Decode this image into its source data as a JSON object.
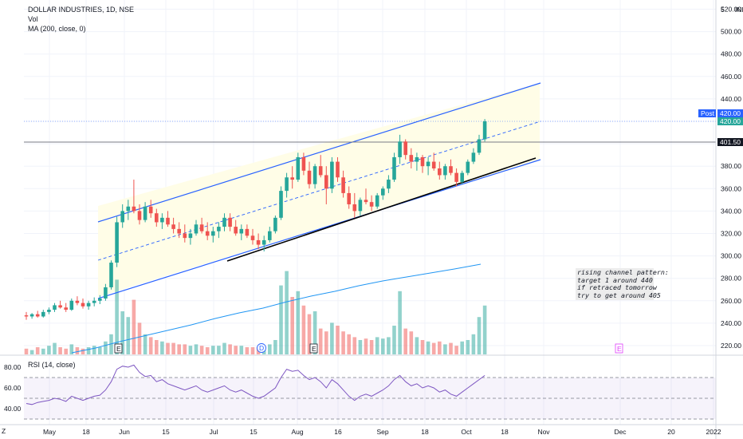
{
  "legend": {
    "title": "DOLLAR INDUSTRIES, 1D, NSE",
    "vol": "Vol",
    "ma": "MA (200, close, 0)",
    "currency": "INR"
  },
  "rsi_label": "RSI (14, close)",
  "note": "rising channel pattern:\ntarget 1 around 440\nif retraced tomorrow\ntry to get around 405",
  "price_labels": {
    "post_tag": "Post",
    "post_price": "420.00",
    "last_price": "420.00",
    "level": "401.50"
  },
  "event_markers": [
    "E",
    "D",
    "E",
    "E"
  ],
  "corner_label": "Z",
  "colors": {
    "up": "#26a69a",
    "down": "#ef5350",
    "channel": "#2962ff",
    "fill": "#fffde7",
    "ma": "#2196f3",
    "rsi": "#7e57c2",
    "level": "#787b86"
  },
  "chart_data": {
    "type": "candlestick",
    "price_axis": {
      "ticks": [
        220,
        240,
        260,
        280,
        300,
        320,
        340,
        360,
        380,
        400,
        420,
        440,
        460,
        480,
        500,
        520
      ],
      "top_label": "5"
    },
    "time_axis": {
      "ticks": [
        "May",
        "18",
        "Jun",
        "15",
        "Jul",
        "15",
        "Aug",
        "16",
        "Sep",
        "18",
        "Oct",
        "18",
        "Nov",
        "Dec",
        "20",
        "2022"
      ]
    },
    "rsi_axis": {
      "ticks": [
        80.0,
        60.0,
        40.0
      ],
      "bands": [
        70,
        50,
        30
      ]
    },
    "ohlc": [
      [
        247,
        250,
        243,
        246
      ],
      [
        246,
        249,
        244,
        248
      ],
      [
        248,
        251,
        245,
        246
      ],
      [
        246,
        252,
        245,
        250
      ],
      [
        250,
        254,
        248,
        252
      ],
      [
        252,
        258,
        250,
        256
      ],
      [
        256,
        260,
        253,
        254
      ],
      [
        254,
        258,
        250,
        252
      ],
      [
        252,
        262,
        251,
        260
      ],
      [
        260,
        264,
        256,
        258
      ],
      [
        258,
        262,
        253,
        255
      ],
      [
        255,
        260,
        252,
        258
      ],
      [
        258,
        263,
        255,
        260
      ],
      [
        260,
        265,
        257,
        262
      ],
      [
        262,
        275,
        260,
        272
      ],
      [
        272,
        296,
        270,
        294
      ],
      [
        294,
        335,
        290,
        330
      ],
      [
        330,
        346,
        325,
        340
      ],
      [
        340,
        350,
        332,
        344
      ],
      [
        344,
        368,
        338,
        340
      ],
      [
        340,
        346,
        328,
        332
      ],
      [
        332,
        348,
        330,
        344
      ],
      [
        344,
        350,
        334,
        338
      ],
      [
        338,
        342,
        326,
        330
      ],
      [
        330,
        338,
        324,
        334
      ],
      [
        334,
        340,
        326,
        328
      ],
      [
        328,
        334,
        320,
        324
      ],
      [
        324,
        330,
        316,
        320
      ],
      [
        320,
        328,
        312,
        316
      ],
      [
        316,
        324,
        310,
        320
      ],
      [
        320,
        332,
        318,
        328
      ],
      [
        328,
        334,
        320,
        322
      ],
      [
        322,
        330,
        314,
        318
      ],
      [
        318,
        326,
        312,
        322
      ],
      [
        322,
        330,
        316,
        326
      ],
      [
        326,
        338,
        322,
        334
      ],
      [
        334,
        338,
        322,
        326
      ],
      [
        326,
        332,
        318,
        320
      ],
      [
        320,
        328,
        314,
        324
      ],
      [
        324,
        328,
        316,
        318
      ],
      [
        318,
        324,
        310,
        314
      ],
      [
        314,
        320,
        306,
        310
      ],
      [
        310,
        318,
        304,
        314
      ],
      [
        314,
        326,
        312,
        322
      ],
      [
        322,
        336,
        320,
        334
      ],
      [
        334,
        362,
        332,
        358
      ],
      [
        358,
        374,
        352,
        370
      ],
      [
        370,
        380,
        360,
        368
      ],
      [
        368,
        392,
        366,
        388
      ],
      [
        388,
        392,
        372,
        376
      ],
      [
        376,
        384,
        360,
        364
      ],
      [
        364,
        382,
        360,
        380
      ],
      [
        380,
        390,
        370,
        372
      ],
      [
        372,
        380,
        346,
        360
      ],
      [
        360,
        388,
        356,
        384
      ],
      [
        384,
        388,
        366,
        370
      ],
      [
        370,
        376,
        352,
        356
      ],
      [
        356,
        362,
        342,
        346
      ],
      [
        346,
        356,
        334,
        340
      ],
      [
        340,
        352,
        336,
        350
      ],
      [
        350,
        360,
        346,
        348
      ],
      [
        348,
        354,
        340,
        344
      ],
      [
        344,
        356,
        342,
        354
      ],
      [
        354,
        362,
        350,
        360
      ],
      [
        360,
        372,
        356,
        368
      ],
      [
        368,
        392,
        366,
        388
      ],
      [
        388,
        408,
        382,
        402
      ],
      [
        402,
        404,
        386,
        390
      ],
      [
        390,
        396,
        378,
        384
      ],
      [
        384,
        392,
        376,
        388
      ],
      [
        388,
        390,
        374,
        380
      ],
      [
        380,
        388,
        372,
        384
      ],
      [
        384,
        392,
        376,
        378
      ],
      [
        378,
        384,
        368,
        372
      ],
      [
        372,
        382,
        368,
        380
      ],
      [
        380,
        386,
        372,
        374
      ],
      [
        374,
        378,
        362,
        366
      ],
      [
        366,
        376,
        364,
        374
      ],
      [
        374,
        386,
        372,
        384
      ],
      [
        384,
        396,
        382,
        392
      ],
      [
        392,
        408,
        390,
        404
      ],
      [
        404,
        422,
        402,
        420
      ]
    ],
    "volume": [
      4,
      3,
      5,
      4,
      6,
      8,
      5,
      4,
      7,
      5,
      4,
      5,
      6,
      5,
      9,
      14,
      52,
      30,
      26,
      38,
      22,
      14,
      12,
      10,
      9,
      8,
      8,
      7,
      7,
      6,
      7,
      6,
      5,
      6,
      6,
      8,
      7,
      6,
      6,
      5,
      5,
      5,
      6,
      7,
      10,
      48,
      58,
      40,
      44,
      34,
      28,
      30,
      18,
      16,
      22,
      20,
      16,
      14,
      12,
      10,
      11,
      10,
      12,
      11,
      12,
      20,
      44,
      18,
      16,
      12,
      10,
      9,
      8,
      9,
      7,
      8,
      6,
      9,
      10,
      14,
      26,
      34
    ],
    "ma200": [
      [
        90,
        442
      ],
      [
        120,
        436
      ],
      [
        150,
        428
      ],
      [
        180,
        421
      ],
      [
        210,
        414
      ],
      [
        240,
        407
      ],
      [
        270,
        399
      ],
      [
        300,
        392
      ],
      [
        330,
        386
      ],
      [
        360,
        378
      ],
      [
        390,
        371
      ],
      [
        420,
        365
      ],
      [
        450,
        358
      ],
      [
        480,
        352
      ],
      [
        510,
        347
      ],
      [
        540,
        342
      ],
      [
        570,
        337
      ],
      [
        603,
        331
      ]
    ],
    "rsi": [
      45,
      44,
      46,
      47,
      48,
      50,
      49,
      47,
      52,
      50,
      48,
      50,
      52,
      53,
      58,
      66,
      78,
      81,
      80,
      82,
      75,
      71,
      72,
      66,
      68,
      64,
      62,
      60,
      58,
      60,
      62,
      58,
      56,
      58,
      60,
      62,
      58,
      56,
      58,
      55,
      52,
      50,
      52,
      56,
      60,
      70,
      78,
      76,
      77,
      72,
      68,
      70,
      66,
      60,
      68,
      64,
      58,
      52,
      48,
      52,
      54,
      52,
      55,
      58,
      62,
      68,
      72,
      66,
      62,
      64,
      60,
      62,
      60,
      56,
      58,
      54,
      52,
      56,
      60,
      64,
      68,
      72
    ]
  }
}
